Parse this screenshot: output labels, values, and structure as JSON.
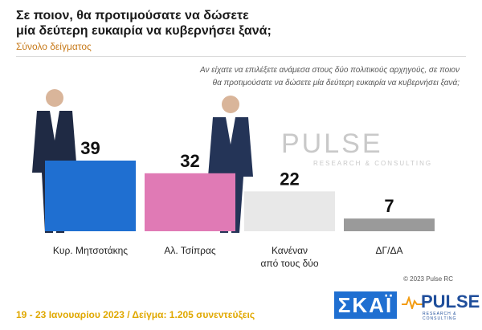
{
  "header": {
    "title_line1": "Σε ποιον, θα προτιμούσατε να δώσετε",
    "title_line2": "μία δεύτερη ευκαιρία να κυβερνήσει ξανά;",
    "subtitle": "Σύνολο δείγματος"
  },
  "question": {
    "line1": "Αν είχατε να επιλέξετε ανάμεσα στους δύο πολιτικούς αρχηγούς, σε ποιον",
    "line2": "θα προτιμούσατε να δώσετε μία δεύτερη ευκαιρία να κυβερνήσει ξανά;"
  },
  "watermark": {
    "main": "PULSE",
    "sub": "RESEARCH & CONSULTING"
  },
  "chart_data": {
    "type": "bar",
    "categories": [
      "Κυρ. Μητσοτάκης",
      "Αλ. Τσίπρας",
      "Κανέναν από τους δύο",
      "ΔΓ/ΔΑ"
    ],
    "category_lines": [
      [
        "Κυρ. Μητσοτάκης"
      ],
      [
        "Αλ. Τσίπρας"
      ],
      [
        "Κανέναν",
        "από τους δύο"
      ],
      [
        "ΔΓ/ΔΑ"
      ]
    ],
    "values": [
      39,
      32,
      22,
      7
    ],
    "value_labels": [
      "39",
      "32",
      "22",
      "7"
    ],
    "colors": [
      "#1f6fd1",
      "#e07ab5",
      "#e8e8e8",
      "#9a9a9a"
    ],
    "ylim": [
      0,
      40
    ],
    "grid": false
  },
  "footer": {
    "copyright": "© 2023 Pulse RC",
    "date_sample": "19 - 23 Ιανουαρίου  2023  /  Δείγμα:  1.205 συνεντεύξεις",
    "skai_logo": "ΣΚΑΪ",
    "pulse_logo": "PULSE",
    "pulse_logo_sub": "RESEARCH & CONSULTING"
  }
}
